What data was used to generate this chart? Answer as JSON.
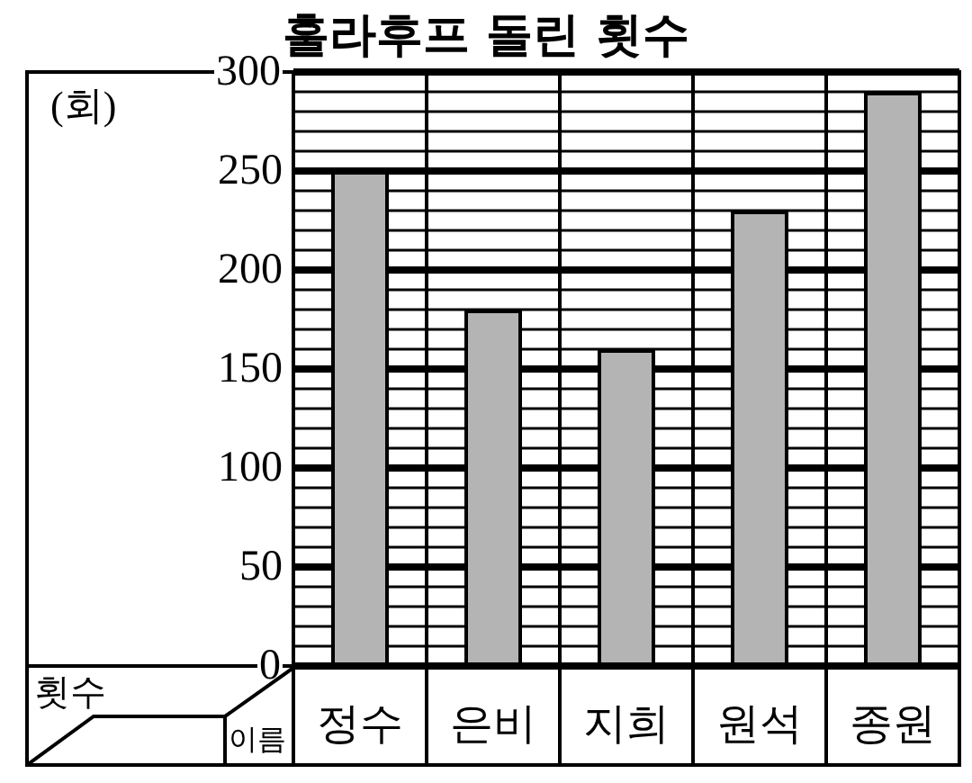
{
  "chart_data": {
    "type": "bar",
    "title": "훌라후프 돌린 횟수",
    "xlabel": "이름",
    "ylabel": "횟수",
    "annotations": [
      "(회)"
    ],
    "categories": [
      "정수",
      "은비",
      "지희",
      "원석",
      "종원"
    ],
    "values": [
      250,
      180,
      160,
      230,
      290
    ],
    "color": "#b4b4b4",
    "ylim": [
      0,
      300
    ],
    "yticks": [
      0,
      50,
      100,
      150,
      200,
      250,
      300
    ],
    "grid": true
  }
}
